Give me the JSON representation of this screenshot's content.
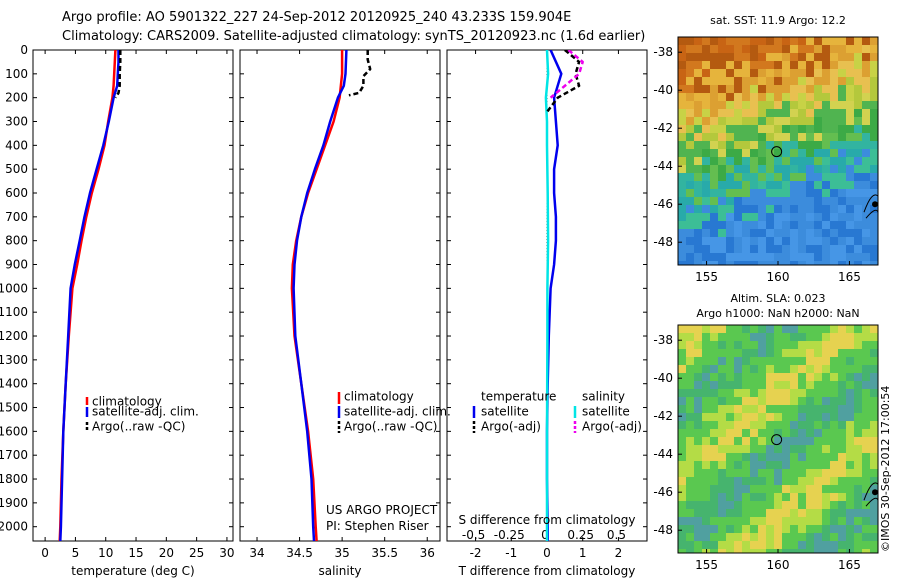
{
  "header": {
    "line1": "Argo profile: AO 5901322_227 24-Sep-2012 20120925_240 43.233S 159.904E",
    "line2": "Climatology: CARS2009. Satellite-adjusted climatology: synTS_20120923.nc (1.6d earlier)"
  },
  "chart_data": [
    {
      "type": "line",
      "panel": "temperature",
      "xlabel": "temperature (deg C)",
      "ylabel": "",
      "xlim": [
        -2,
        31
      ],
      "ylim": [
        2060,
        0
      ],
      "y_reversed": true,
      "xticks": [
        0,
        5,
        10,
        15,
        20,
        25,
        30
      ],
      "yticks": [
        0,
        100,
        200,
        300,
        400,
        500,
        600,
        700,
        800,
        900,
        1000,
        1100,
        1200,
        1300,
        1400,
        1500,
        1600,
        1700,
        1800,
        1900,
        2000
      ],
      "legend_placement": "middle",
      "series": [
        {
          "name": "climatology",
          "color": "#ff0000",
          "style": "solid",
          "depth": [
            0,
            50,
            100,
            150,
            200,
            300,
            400,
            500,
            600,
            700,
            800,
            900,
            1000,
            1200,
            1400,
            1600,
            1800,
            2000,
            2060
          ],
          "values": [
            11.6,
            11.5,
            11.4,
            11.3,
            11.1,
            10.4,
            9.8,
            8.8,
            7.7,
            6.8,
            6.0,
            5.3,
            4.5,
            3.9,
            3.4,
            3.0,
            2.7,
            2.5,
            2.4
          ]
        },
        {
          "name": "satellite-adj. clim.",
          "color": "#0000ee",
          "style": "solid",
          "depth": [
            0,
            50,
            100,
            150,
            200,
            300,
            400,
            500,
            600,
            700,
            800,
            900,
            1000,
            1200,
            1400,
            1600,
            1800,
            2000,
            2060
          ],
          "values": [
            12.1,
            12.1,
            12.0,
            11.9,
            11.3,
            10.5,
            9.6,
            8.5,
            7.4,
            6.5,
            5.7,
            4.9,
            4.2,
            3.8,
            3.4,
            3.0,
            2.8,
            2.6,
            2.5
          ]
        },
        {
          "name": "Argo(..raw -QC)",
          "color": "#000000",
          "style": "dashed",
          "depth": [
            0,
            50,
            100,
            150,
            180,
            200
          ],
          "values": [
            12.4,
            12.4,
            12.3,
            12.3,
            12.1,
            11.6
          ]
        }
      ]
    },
    {
      "type": "line",
      "panel": "salinity",
      "xlabel": "salinity",
      "ylabel": "",
      "xlim": [
        33.8,
        36.15
      ],
      "ylim": [
        2060,
        0
      ],
      "y_reversed": true,
      "xticks": [
        34,
        34.5,
        35,
        35.5,
        36
      ],
      "legend_placement": "middle",
      "annotations": [
        "US ARGO PROJECT",
        "PI: Stephen Riser"
      ],
      "series": [
        {
          "name": "climatology",
          "color": "#ff0000",
          "style": "solid",
          "depth": [
            0,
            100,
            200,
            300,
            400,
            500,
            600,
            700,
            800,
            900,
            1000,
            1200,
            1400,
            1600,
            1800,
            2000,
            2060
          ],
          "values": [
            35.0,
            35.0,
            34.97,
            34.9,
            34.8,
            34.7,
            34.6,
            34.52,
            34.46,
            34.42,
            34.41,
            34.44,
            34.52,
            34.6,
            34.66,
            34.69,
            34.7
          ]
        },
        {
          "name": "satellite-adj. clim.",
          "color": "#0000ee",
          "style": "solid",
          "depth": [
            0,
            100,
            150,
            200,
            300,
            400,
            500,
            600,
            700,
            800,
            900,
            1000,
            1200,
            1400,
            1600,
            1800,
            2000,
            2060
          ],
          "values": [
            35.05,
            35.04,
            35.02,
            34.95,
            34.86,
            34.78,
            34.68,
            34.59,
            34.52,
            34.47,
            34.44,
            34.43,
            34.45,
            34.52,
            34.59,
            34.64,
            34.66,
            34.67
          ]
        },
        {
          "name": "Argo(..raw -QC)",
          "color": "#000000",
          "style": "dashed",
          "depth": [
            0,
            40,
            80,
            110,
            150,
            180,
            190
          ],
          "values": [
            35.3,
            35.3,
            35.33,
            35.25,
            35.25,
            35.2,
            35.08
          ]
        }
      ]
    },
    {
      "type": "line",
      "panel": "difference",
      "xlabel": "T difference from climatology",
      "title": "S difference from climatology",
      "xlim": [
        -2.8,
        2.8
      ],
      "ylim": [
        2060,
        0
      ],
      "y_reversed": true,
      "xticks": [
        -2,
        -1,
        0,
        1,
        2
      ],
      "top_ticks": [
        -0.5,
        -0.25,
        0,
        0.25,
        0.5
      ],
      "legend": {
        "temperature_header": "temperature",
        "salinity_header": "salinity"
      },
      "legend_placement": "middle",
      "series": [
        {
          "name": "satellite",
          "group": "temperature",
          "color": "#0000ee",
          "style": "solid",
          "depth": [
            0,
            100,
            200,
            300,
            400,
            500,
            600,
            700,
            800,
            900,
            1000,
            1200,
            1400,
            1600,
            1800,
            2000,
            2060
          ],
          "values": [
            0.1,
            0.4,
            0.2,
            0.25,
            0.3,
            0.2,
            0.2,
            0.25,
            0.25,
            0.2,
            0.1,
            0.05,
            0.02,
            0.0,
            0.0,
            0.02,
            0.02
          ]
        },
        {
          "name": "satellite",
          "group": "salinity",
          "color": "#00e5e5",
          "style": "solid",
          "depth": [
            0,
            100,
            200,
            300,
            400,
            600,
            800,
            1000,
            1200,
            1600,
            2060
          ],
          "values": [
            0.0,
            0.03,
            -0.03,
            0.0,
            0.0,
            0.02,
            0.03,
            0.01,
            0.01,
            0.0,
            0.0
          ]
        },
        {
          "name": "Argo(-adj)",
          "group": "temperature",
          "color": "#000000",
          "style": "dashed",
          "depth": [
            0,
            50,
            100,
            150,
            200,
            260
          ],
          "values": [
            0.5,
            0.9,
            0.8,
            0.9,
            0.3,
            0.0
          ]
        },
        {
          "name": "Argo(-adj)",
          "group": "salinity",
          "color": "#ee00ee",
          "style": "dashed",
          "depth": [
            0,
            50,
            100,
            150,
            200
          ],
          "values": [
            0.6,
            1.0,
            0.9,
            0.5,
            0.1
          ]
        }
      ]
    },
    {
      "type": "heatmap",
      "panel": "sst-map",
      "title": "sat. SST: 11.9  Argo: 12.2",
      "xticks": [
        155,
        160,
        165
      ],
      "yticks": [
        -38,
        -40,
        -42,
        -44,
        -46,
        -48
      ],
      "xlim": [
        153,
        167
      ],
      "ylim": [
        -49.2,
        -37.2
      ],
      "marker": {
        "lon": 159.904,
        "lat": -43.233
      }
    },
    {
      "type": "heatmap",
      "panel": "sla-map",
      "title": "Altim. SLA: 0.023",
      "subtitle": "Argo h1000: NaN h2000: NaN",
      "xticks": [
        155,
        160,
        165
      ],
      "yticks": [
        -38,
        -40,
        -42,
        -44,
        -46,
        -48
      ],
      "xlim": [
        153,
        167
      ],
      "ylim": [
        -49.2,
        -37.2
      ],
      "marker": {
        "lon": 159.904,
        "lat": -43.233
      }
    }
  ],
  "legend_labels": {
    "clim": "climatology",
    "sat": "satellite-adj. clim.",
    "argo": "Argo(..raw -QC)",
    "diff_temp_header": "temperature",
    "diff_sal_header": "salinity",
    "diff_sat": "satellite",
    "diff_argo": "Argo(-adj)"
  },
  "credits": {
    "project": "US ARGO PROJECT",
    "pi": "PI: Stephen Riser"
  },
  "side_stamp": "©IMOS 30-Sep-2012 17:00:54",
  "colors": {
    "climatology": "#ff0000",
    "satellite": "#0000ee",
    "argo": "#000000",
    "salinity_sat": "#00e5e5",
    "salinity_argo": "#ee00ee"
  }
}
